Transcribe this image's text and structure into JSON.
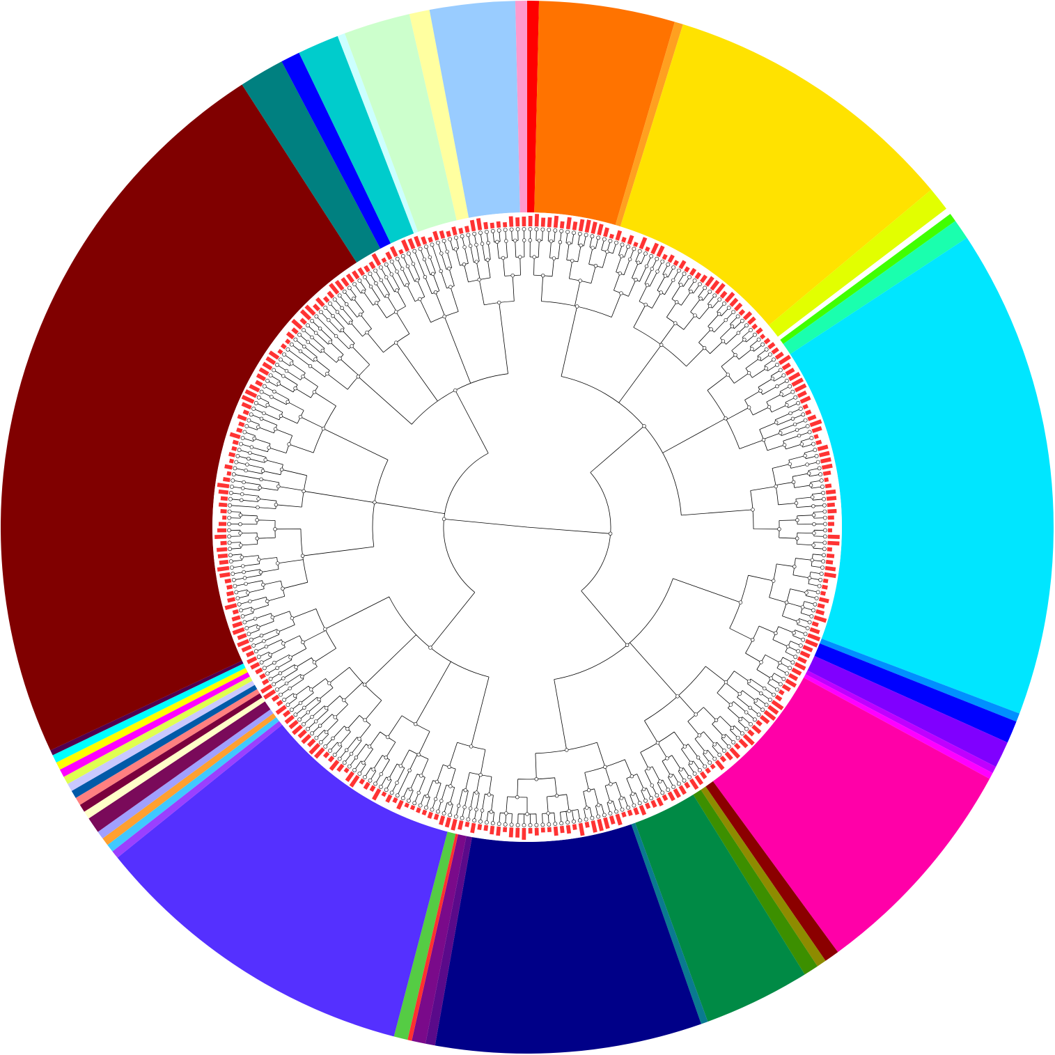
{
  "diagram": {
    "type": "circular-phylogenetic-tree",
    "leaf_count": 300,
    "leaf_node_marker": "hollow-circle",
    "bar_color": "#ff3333",
    "tree_line_color": "#000000",
    "clade_ring_colors": [
      "#ff0000",
      "#ff7300",
      "#ffa020",
      "#ffe200",
      "#e2ff00",
      "#ffffff",
      "#40ff00",
      "#1affae",
      "#00e6ff",
      "#0090ff",
      "#0000ff",
      "#8000ff",
      "#c000ff",
      "#ff00ff",
      "#ff00a8",
      "#8b0000",
      "#8e8b00",
      "#3c8f00",
      "#008a45",
      "#0a7a90",
      "#000088",
      "#5a0a8a",
      "#7a0a8a",
      "#ff3030",
      "#55cc44",
      "#5530ff",
      "#9a40ff",
      "#40c8ff",
      "#ffa030",
      "#a0a0ff",
      "#7a0a5a",
      "#ffffc8",
      "#7a003c",
      "#ff8080",
      "#005aa8",
      "#c8c8ff",
      "#e0ff50",
      "#ff00ff",
      "#ffff00",
      "#00ffff",
      "#500050",
      "#800000",
      "#008080",
      "#0000ff",
      "#00cccc",
      "#ccffff",
      "#ccffcc",
      "#ffffa0",
      "#99ccff",
      "#ff99cc"
    ]
  }
}
